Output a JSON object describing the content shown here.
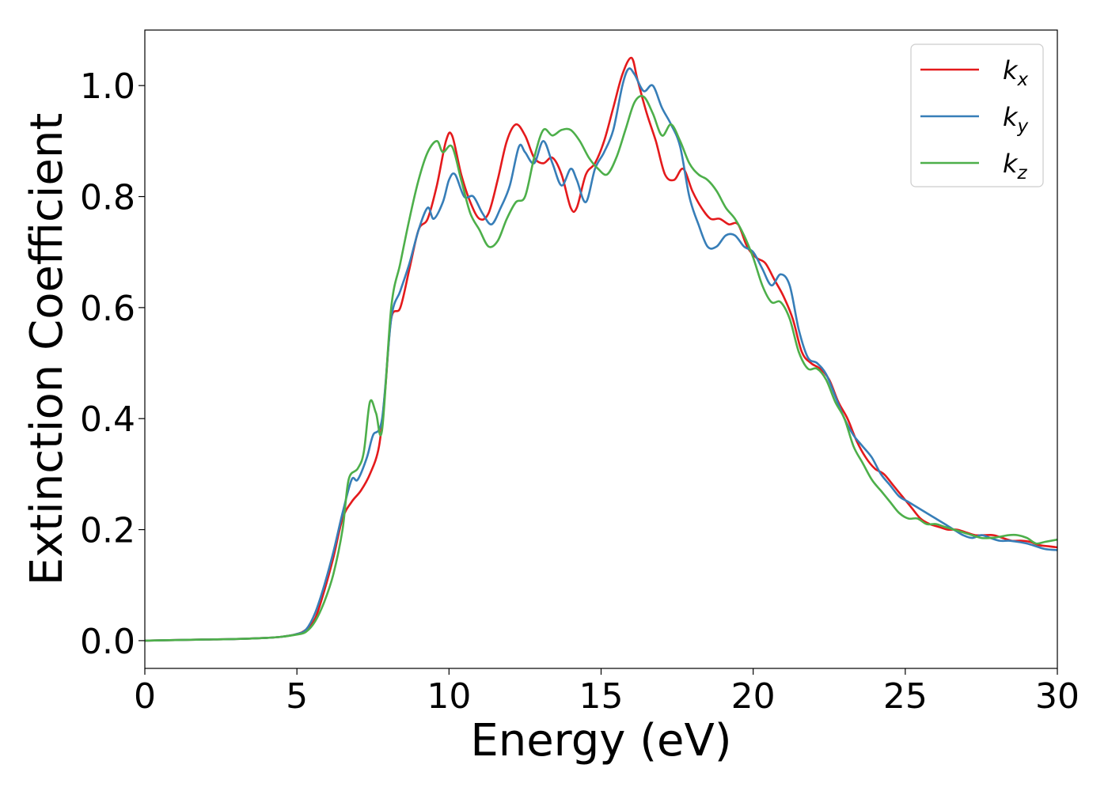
{
  "chart_data": {
    "type": "line",
    "xlabel": "Energy (eV)",
    "ylabel": "Extinction Coefficient",
    "xlim": [
      0,
      30
    ],
    "ylim": [
      -0.05,
      1.1
    ],
    "xticks": [
      0,
      5,
      10,
      15,
      20,
      25,
      30
    ],
    "xtick_labels": [
      "0",
      "5",
      "10",
      "15",
      "20",
      "25",
      "30"
    ],
    "yticks": [
      0.0,
      0.2,
      0.4,
      0.6,
      0.8,
      1.0
    ],
    "ytick_labels": [
      "0.0",
      "0.2",
      "0.4",
      "0.6",
      "0.8",
      "1.0"
    ],
    "grid": false,
    "legend_position": "top-right",
    "series": [
      {
        "name": "k",
        "subscript": "x",
        "color": "#e41a1c",
        "x": [
          0,
          1,
          2,
          3,
          4,
          4.5,
          5,
          5.3,
          5.6,
          5.9,
          6.2,
          6.5,
          6.8,
          7.1,
          7.4,
          7.7,
          7.9,
          8.1,
          8.4,
          8.7,
          9.0,
          9.3,
          9.6,
          9.9,
          10.1,
          10.4,
          10.7,
          11.0,
          11.3,
          11.6,
          11.9,
          12.2,
          12.5,
          12.8,
          13.1,
          13.4,
          13.7,
          14.0,
          14.2,
          14.5,
          14.8,
          15.1,
          15.4,
          15.7,
          16.0,
          16.2,
          16.5,
          16.8,
          17.1,
          17.4,
          17.7,
          18.0,
          18.3,
          18.6,
          18.9,
          19.2,
          19.5,
          19.8,
          20.1,
          20.4,
          20.7,
          21.0,
          21.3,
          21.6,
          21.9,
          22.2,
          22.5,
          22.8,
          23.1,
          23.4,
          23.7,
          24.0,
          24.3,
          24.6,
          24.9,
          25.2,
          25.5,
          25.8,
          26.1,
          26.4,
          26.7,
          27.0,
          27.3,
          27.6,
          27.9,
          28.2,
          28.5,
          28.8,
          29.1,
          29.4,
          29.7,
          30.0
        ],
        "y": [
          0.0,
          0.001,
          0.002,
          0.003,
          0.005,
          0.007,
          0.012,
          0.02,
          0.04,
          0.09,
          0.15,
          0.22,
          0.25,
          0.27,
          0.3,
          0.35,
          0.45,
          0.58,
          0.6,
          0.67,
          0.74,
          0.76,
          0.82,
          0.9,
          0.91,
          0.84,
          0.79,
          0.76,
          0.77,
          0.83,
          0.9,
          0.93,
          0.91,
          0.87,
          0.86,
          0.87,
          0.84,
          0.78,
          0.78,
          0.84,
          0.86,
          0.9,
          0.96,
          1.02,
          1.05,
          1.01,
          0.95,
          0.9,
          0.84,
          0.83,
          0.85,
          0.81,
          0.78,
          0.76,
          0.76,
          0.75,
          0.75,
          0.71,
          0.69,
          0.68,
          0.65,
          0.62,
          0.58,
          0.52,
          0.5,
          0.49,
          0.47,
          0.43,
          0.4,
          0.36,
          0.33,
          0.31,
          0.3,
          0.28,
          0.26,
          0.24,
          0.22,
          0.21,
          0.205,
          0.2,
          0.2,
          0.195,
          0.19,
          0.19,
          0.19,
          0.185,
          0.18,
          0.18,
          0.178,
          0.172,
          0.17,
          0.168
        ]
      },
      {
        "name": "k",
        "subscript": "y",
        "color": "#377eb8",
        "x": [
          0,
          1,
          2,
          3,
          4,
          4.5,
          5,
          5.3,
          5.6,
          5.9,
          6.2,
          6.5,
          6.8,
          7.0,
          7.3,
          7.5,
          7.8,
          8.1,
          8.4,
          8.7,
          9.0,
          9.3,
          9.5,
          9.8,
          10.0,
          10.2,
          10.5,
          10.8,
          11.1,
          11.4,
          11.7,
          12.0,
          12.3,
          12.5,
          12.8,
          13.1,
          13.4,
          13.7,
          14.0,
          14.2,
          14.5,
          14.8,
          15.1,
          15.4,
          15.7,
          15.9,
          16.1,
          16.4,
          16.7,
          17.0,
          17.3,
          17.6,
          17.9,
          18.2,
          18.5,
          18.8,
          19.1,
          19.4,
          19.7,
          20.0,
          20.3,
          20.6,
          20.9,
          21.2,
          21.5,
          21.8,
          22.1,
          22.4,
          22.7,
          23.0,
          23.3,
          23.6,
          23.9,
          24.2,
          24.5,
          24.8,
          25.1,
          25.4,
          25.7,
          26.0,
          26.3,
          26.6,
          26.9,
          27.2,
          27.5,
          27.8,
          28.1,
          28.4,
          28.7,
          29.0,
          29.3,
          29.6,
          30.0
        ],
        "y": [
          0.0,
          0.001,
          0.002,
          0.003,
          0.005,
          0.007,
          0.012,
          0.02,
          0.05,
          0.1,
          0.16,
          0.23,
          0.29,
          0.29,
          0.33,
          0.37,
          0.4,
          0.58,
          0.63,
          0.68,
          0.74,
          0.78,
          0.76,
          0.79,
          0.83,
          0.84,
          0.8,
          0.8,
          0.77,
          0.75,
          0.78,
          0.82,
          0.89,
          0.88,
          0.86,
          0.9,
          0.86,
          0.82,
          0.85,
          0.83,
          0.79,
          0.85,
          0.88,
          0.92,
          1.0,
          1.03,
          1.02,
          0.99,
          1.0,
          0.96,
          0.93,
          0.89,
          0.8,
          0.75,
          0.71,
          0.71,
          0.73,
          0.73,
          0.71,
          0.7,
          0.67,
          0.64,
          0.66,
          0.64,
          0.56,
          0.51,
          0.5,
          0.48,
          0.44,
          0.4,
          0.37,
          0.35,
          0.33,
          0.3,
          0.28,
          0.26,
          0.25,
          0.24,
          0.23,
          0.22,
          0.21,
          0.2,
          0.19,
          0.185,
          0.19,
          0.185,
          0.18,
          0.18,
          0.178,
          0.175,
          0.17,
          0.165,
          0.163
        ]
      },
      {
        "name": "k",
        "subscript": "z",
        "color": "#4daf4a",
        "x": [
          0,
          1,
          2,
          3,
          4,
          4.5,
          5,
          5.3,
          5.6,
          5.9,
          6.2,
          6.5,
          6.7,
          7.0,
          7.2,
          7.4,
          7.6,
          7.8,
          8.1,
          8.4,
          8.7,
          9.0,
          9.3,
          9.6,
          9.8,
          10.1,
          10.4,
          10.7,
          11.0,
          11.3,
          11.6,
          11.9,
          12.2,
          12.5,
          12.8,
          13.1,
          13.4,
          13.7,
          14.0,
          14.3,
          14.6,
          14.9,
          15.2,
          15.5,
          15.8,
          16.1,
          16.4,
          16.7,
          17.0,
          17.3,
          17.6,
          17.9,
          18.2,
          18.5,
          18.8,
          19.1,
          19.4,
          19.7,
          20.0,
          20.3,
          20.6,
          20.9,
          21.2,
          21.5,
          21.8,
          22.1,
          22.4,
          22.7,
          23.0,
          23.3,
          23.6,
          23.9,
          24.2,
          24.5,
          24.8,
          25.1,
          25.4,
          25.7,
          26.0,
          26.3,
          26.6,
          26.9,
          27.2,
          27.5,
          27.8,
          28.1,
          28.4,
          28.7,
          29.0,
          29.3,
          29.6,
          30.0
        ],
        "y": [
          0.0,
          0.001,
          0.002,
          0.003,
          0.005,
          0.007,
          0.011,
          0.016,
          0.035,
          0.07,
          0.12,
          0.2,
          0.29,
          0.31,
          0.34,
          0.43,
          0.41,
          0.38,
          0.6,
          0.68,
          0.76,
          0.83,
          0.88,
          0.9,
          0.88,
          0.89,
          0.83,
          0.77,
          0.74,
          0.71,
          0.72,
          0.76,
          0.79,
          0.8,
          0.87,
          0.92,
          0.91,
          0.92,
          0.92,
          0.9,
          0.87,
          0.85,
          0.84,
          0.87,
          0.92,
          0.97,
          0.98,
          0.95,
          0.91,
          0.93,
          0.9,
          0.86,
          0.84,
          0.83,
          0.81,
          0.78,
          0.76,
          0.73,
          0.69,
          0.64,
          0.61,
          0.61,
          0.58,
          0.52,
          0.49,
          0.49,
          0.47,
          0.43,
          0.4,
          0.35,
          0.32,
          0.29,
          0.27,
          0.25,
          0.23,
          0.22,
          0.22,
          0.21,
          0.21,
          0.205,
          0.2,
          0.195,
          0.19,
          0.185,
          0.185,
          0.187,
          0.19,
          0.19,
          0.185,
          0.175,
          0.178,
          0.182
        ]
      }
    ]
  }
}
